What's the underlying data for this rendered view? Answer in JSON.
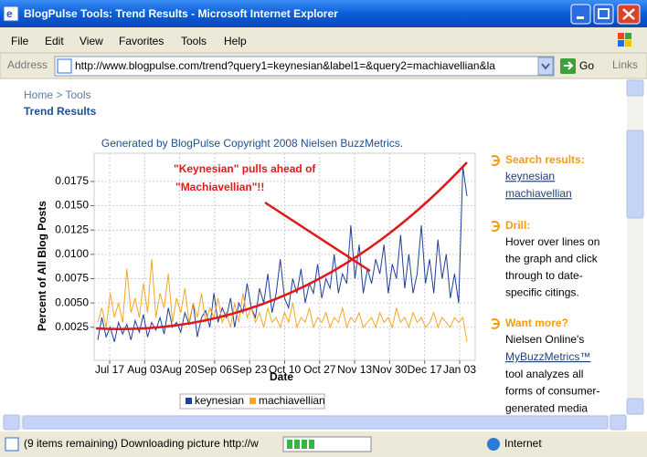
{
  "window": {
    "title": "BlogPulse Tools: Trend Results - Microsoft Internet Explorer"
  },
  "menu": [
    "File",
    "Edit",
    "View",
    "Favorites",
    "Tools",
    "Help"
  ],
  "address": {
    "label": "Address",
    "url": "http://www.blogpulse.com/trend?query1=keynesian&label1=&query2=machiavellian&la",
    "go": "Go",
    "links": "Links"
  },
  "page": {
    "breadcrumb": "Home > Tools",
    "heading": "Trend Results",
    "credit": "Generated by BlogPulse Copyright 2008 Nielsen BuzzMetrics."
  },
  "chart_data": {
    "type": "line",
    "ylabel": "Percent of All Blog Posts",
    "xlabel": "Date",
    "annotation": [
      "\"Keynesian\" pulls ahead of",
      "\"Machiavellian\"!!"
    ],
    "xticks": [
      "Jul 17",
      "Aug 03",
      "Aug 20",
      "Sep 06",
      "Sep 23",
      "Oct 10",
      "Oct 27",
      "Nov 13",
      "Nov 30",
      "Dec 17",
      "Jan 03"
    ],
    "ylim": [
      -0.0009,
      0.0204
    ],
    "yticks": [
      0.0025,
      {
        "value": 0.005,
        "label": "0.0050"
      },
      0.0075,
      {
        "value": 0.01,
        "label": "0.0100"
      },
      0.0125,
      {
        "value": 0.015,
        "label": "0.0150"
      },
      0.0175
    ],
    "grid": true,
    "series": [
      {
        "name": "keynesian",
        "color": "#1f3f9a",
        "values": [
          0.0012,
          0.0035,
          0.0015,
          0.0025,
          0.001,
          0.003,
          0.0018,
          0.0028,
          0.0012,
          0.0032,
          0.002,
          0.0038,
          0.0015,
          0.003,
          0.0022,
          0.0035,
          0.0018,
          0.0045,
          0.0025,
          0.003,
          0.002,
          0.004,
          0.0028,
          0.005,
          0.0015,
          0.0035,
          0.0042,
          0.0025,
          0.006,
          0.003,
          0.0045,
          0.0035,
          0.0055,
          0.0025,
          0.005,
          0.004,
          0.007,
          0.0045,
          0.0035,
          0.0065,
          0.005,
          0.008,
          0.004,
          0.006,
          0.0095,
          0.0055,
          0.0045,
          0.0075,
          0.006,
          0.0085,
          0.005,
          0.007,
          0.006,
          0.009,
          0.0055,
          0.0075,
          0.0065,
          0.01,
          0.006,
          0.008,
          0.007,
          0.013,
          0.0075,
          0.011,
          0.006,
          0.0085,
          0.007,
          0.0095,
          0.008,
          0.011,
          0.006,
          0.009,
          0.0075,
          0.012,
          0.0065,
          0.01,
          0.006,
          0.008,
          0.013,
          0.007,
          0.0095,
          0.006,
          0.0115,
          0.0075,
          0.01,
          0.0055,
          0.008,
          0.005,
          0.019,
          0.016
        ]
      },
      {
        "name": "machiavellian",
        "color": "#f5a623",
        "values": [
          0.003,
          0.0045,
          0.0025,
          0.006,
          0.0035,
          0.005,
          0.003,
          0.0085,
          0.004,
          0.0055,
          0.0035,
          0.007,
          0.004,
          0.0095,
          0.0035,
          0.006,
          0.0045,
          0.008,
          0.003,
          0.0055,
          0.004,
          0.0065,
          0.003,
          0.005,
          0.0035,
          0.006,
          0.003,
          0.0045,
          0.0035,
          0.0055,
          0.003,
          0.004,
          0.0025,
          0.005,
          0.003,
          0.006,
          0.0035,
          0.0045,
          0.003,
          0.004,
          0.0025,
          0.0045,
          0.003,
          0.0035,
          0.0025,
          0.004,
          0.003,
          0.005,
          0.0025,
          0.0035,
          0.003,
          0.0045,
          0.0025,
          0.0035,
          0.003,
          0.004,
          0.0025,
          0.0035,
          0.003,
          0.0045,
          0.0025,
          0.0035,
          0.003,
          0.004,
          0.0025,
          0.003,
          0.0035,
          0.0025,
          0.004,
          0.003,
          0.0035,
          0.0025,
          0.0045,
          0.003,
          0.0035,
          0.0025,
          0.004,
          0.003,
          0.0035,
          0.0025,
          0.003,
          0.004,
          0.0025,
          0.0035,
          0.003,
          0.0025,
          0.0035,
          0.003,
          0.0035,
          0.001
        ]
      }
    ]
  },
  "sidebar": {
    "search": {
      "heading": "Search results:",
      "links": [
        "keynesian",
        "machiavellian"
      ]
    },
    "drill": {
      "heading": "Drill:",
      "lines": [
        "Hover over lines on",
        "the graph and click",
        "through to date-",
        "specific citings."
      ]
    },
    "more": {
      "heading": "Want more?",
      "lines": [
        "Nielsen Online's",
        "MyBuzzMetrics™",
        "tool analyzes all",
        "forms of consumer-",
        "generated media"
      ]
    }
  },
  "status": {
    "text": "(9 items remaining) Downloading picture http://w",
    "zone": "Internet"
  }
}
